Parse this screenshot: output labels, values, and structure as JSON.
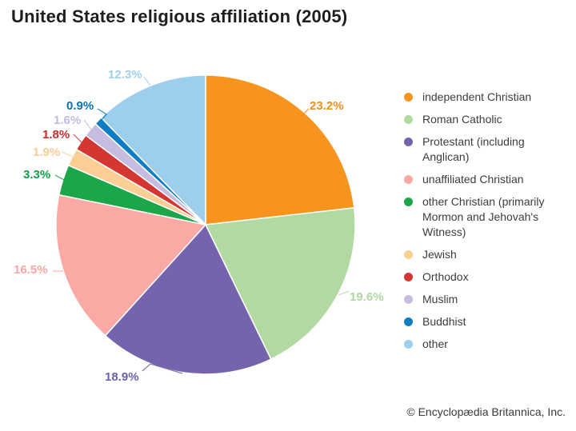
{
  "title": "United States religious affiliation (2005)",
  "footer": "© Encyclopædia Britannica, Inc.",
  "chart_data": {
    "type": "pie",
    "title": "United States religious affiliation (2005)",
    "start_angle_deg": 0,
    "direction": "clockwise",
    "total": 100,
    "legend_position": "right",
    "slices": [
      {
        "label": "independent Christian",
        "value": 23.2,
        "display": "23.2%",
        "color": "#F7941E",
        "label_color": "#EE8F1C"
      },
      {
        "label": "Roman Catholic",
        "value": 19.6,
        "display": "19.6%",
        "color": "#B2D9A2",
        "label_color": "#AFD7A0"
      },
      {
        "label": "Protestant (including Anglican)",
        "value": 18.9,
        "display": "18.9%",
        "color": "#7564AD",
        "label_color": "#6F5FA9"
      },
      {
        "label": "unaffiliated Christian",
        "value": 16.5,
        "display": "16.5%",
        "color": "#FAA9A4",
        "label_color": "#F7A7A3"
      },
      {
        "label": "other Christian (primarily Mormon and Jehovah's Witness)",
        "value": 3.3,
        "display": "3.3%",
        "color": "#1CA64A",
        "label_color": "#12A148"
      },
      {
        "label": "Jewish",
        "value": 1.9,
        "display": "1.9%",
        "color": "#FBCE93",
        "label_color": "#FACD92"
      },
      {
        "label": "Orthodox",
        "value": 1.8,
        "display": "1.8%",
        "color": "#D43732",
        "label_color": "#CC2B2B"
      },
      {
        "label": "Muslim",
        "value": 1.6,
        "display": "1.6%",
        "color": "#C6BCE0",
        "label_color": "#C4BADF"
      },
      {
        "label": "Buddhist",
        "value": 0.9,
        "display": "0.9%",
        "color": "#0E7DC1",
        "label_color": "#0A6FB2"
      },
      {
        "label": "other",
        "value": 12.3,
        "display": "12.3%",
        "color": "#9DCEEC",
        "label_color": "#A3CFEE"
      }
    ]
  }
}
